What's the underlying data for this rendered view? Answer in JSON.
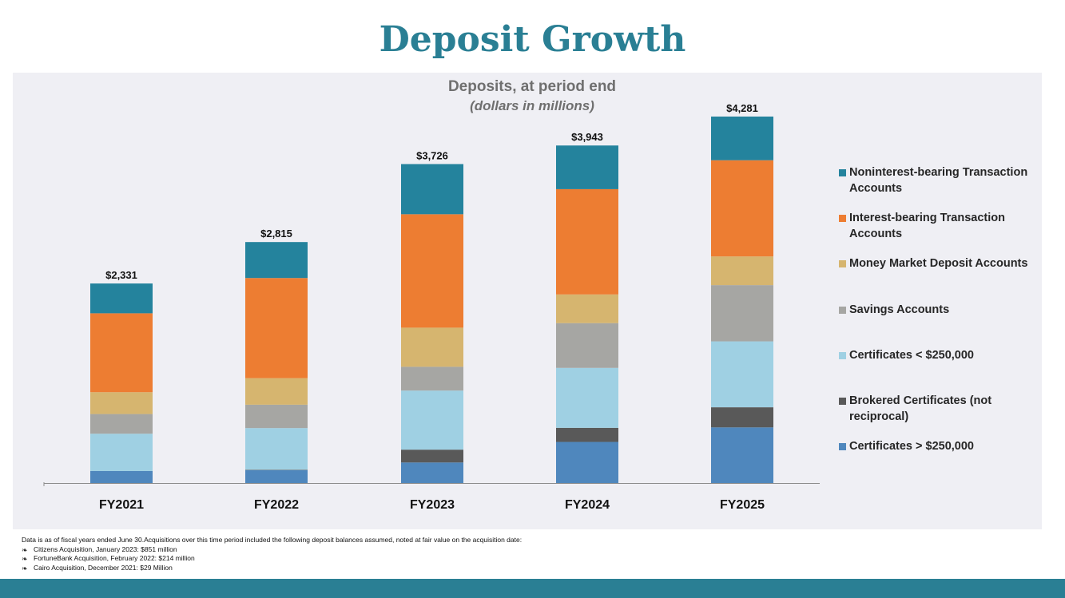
{
  "title": "Deposit Growth",
  "colors": {
    "title": "#2a7f94",
    "panel": "#efeff4",
    "footer_bar": "#2a7f94"
  },
  "chart_data": {
    "type": "bar",
    "stacked": true,
    "title": "Deposits, at period end",
    "subtitle": "(dollars in millions)",
    "categories": [
      "FY2021",
      "FY2022",
      "FY2023",
      "FY2024",
      "FY2025"
    ],
    "totals": [
      "$2,331",
      "$2,815",
      "$3,726",
      "$3,943",
      "$4,281"
    ],
    "total_values": [
      2331,
      2815,
      3726,
      3943,
      4281
    ],
    "series": [
      {
        "name": "Certificates > $250,000",
        "color": "#4f87bd",
        "values": [
          140,
          150,
          240,
          480,
          650
        ]
      },
      {
        "name": "Brokered Certificates (not reciprocal)",
        "color": "#595959",
        "values": [
          0,
          5,
          150,
          165,
          235
        ]
      },
      {
        "name": "Certificates < $250,000",
        "color": "#9fd0e3",
        "values": [
          436,
          487,
          690,
          700,
          770
        ]
      },
      {
        "name": "Savings Accounts",
        "color": "#a6a6a3",
        "values": [
          230,
          273,
          278,
          523,
          657
        ]
      },
      {
        "name": "Money Market Deposit Accounts",
        "color": "#d6b56f",
        "values": [
          255,
          310,
          457,
          335,
          335
        ]
      },
      {
        "name": "Interest-bearing Transaction Accounts",
        "color": "#ed7d32",
        "values": [
          922,
          1170,
          1325,
          1230,
          1124
        ]
      },
      {
        "name": "Noninterest-bearing Transaction Accounts",
        "color": "#24839d",
        "values": [
          348,
          420,
          586,
          510,
          510
        ]
      }
    ],
    "legend_order": [
      "Noninterest-bearing Transaction Accounts",
      "Interest-bearing Transaction Accounts",
      "Money Market Deposit Accounts",
      "Savings Accounts",
      "Certificates < $250,000",
      "Brokered Certificates (not reciprocal)",
      "Certificates > $250,000"
    ],
    "legend_position": "right",
    "ylim": [
      0,
      4281
    ],
    "grid": false
  },
  "footnotes": {
    "intro": "Data is as of fiscal years ended June 30.Acquisitions over this time period included the following deposit balances assumed, noted at fair value on the acquisition date:",
    "items": [
      "Citizens Acquisition, January 2023: $851 million",
      "FortuneBank Acquisition, February 2022: $214 million",
      "Cairo Acquisition, December 2021: $29 Million"
    ]
  }
}
